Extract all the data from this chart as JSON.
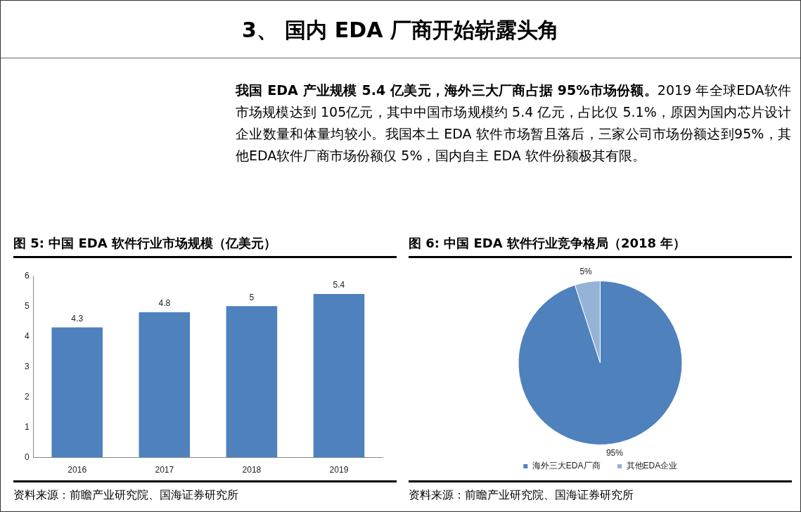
{
  "chart_data": [
    {
      "type": "other",
      "title": "3、 国内 EDA 厂商开始崭露头角",
      "annotations": [
        "我国 EDA 产业规模 5.4 亿美元，海外三大厂商占据 95%市场份额。",
        "2019 年全球EDA软件市场规模达到 105亿元，其中中国市场规模约 5.4 亿元，占比仅 5.1%，原因为国内芯片设计企业数量和体量均较小。我国本土 EDA 软件市场暂且落后，三家公司市场份额达到95%，其他EDA软件厂商市场份额仅 5%，国内自主 EDA 软件份额极其有限。"
      ]
    },
    {
      "type": "bar",
      "title": "图 5:  中国 EDA 软件行业市场规模（亿美元）",
      "categories": [
        "2016",
        "2017",
        "2018",
        "2019"
      ],
      "values": [
        4.3,
        4.8,
        5,
        5.4
      ],
      "color": "#4f81bd",
      "ylim": [
        0,
        6
      ],
      "yticks": [
        0,
        1,
        2,
        3,
        4,
        5,
        6
      ],
      "data_labels": true,
      "annotations": [
        "资料来源：前瞻产业研究院、国海证券研究所"
      ]
    },
    {
      "type": "pie",
      "title": "图 6:  中国 EDA 软件行业竞争格局（2018 年）",
      "categories": [
        "海外三大EDA厂商",
        "其他EDA企业"
      ],
      "values": [
        95,
        5
      ],
      "value_labels": [
        "95%",
        "5%"
      ],
      "colors": [
        "#4f81bd",
        "#95b3d7"
      ],
      "legend": "bottom",
      "annotations": [
        "资料来源：前瞻产业研究院、国海证券研究所"
      ]
    }
  ]
}
